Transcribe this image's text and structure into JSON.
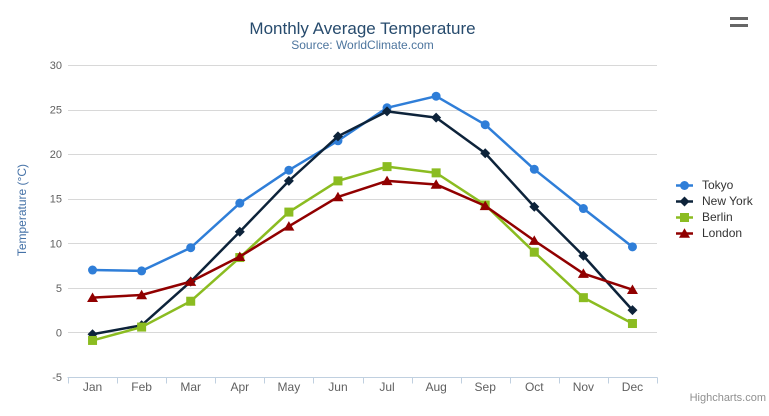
{
  "chart_data": {
    "type": "line",
    "title": "Monthly Average Temperature",
    "subtitle": "Source: WorldClimate.com",
    "xlabel": "",
    "ylabel": "Temperature (°C)",
    "ylim": [
      -5,
      30
    ],
    "y_ticks": [
      -5,
      0,
      5,
      10,
      15,
      20,
      25,
      30
    ],
    "grid": true,
    "legend_position": "right",
    "credits": "Highcharts.com",
    "categories": [
      "Jan",
      "Feb",
      "Mar",
      "Apr",
      "May",
      "Jun",
      "Jul",
      "Aug",
      "Sep",
      "Oct",
      "Nov",
      "Dec"
    ],
    "series": [
      {
        "name": "Tokyo",
        "color": "#2f7ed8",
        "marker": "circle",
        "values": [
          7.0,
          6.9,
          9.5,
          14.5,
          18.2,
          21.5,
          25.2,
          26.5,
          23.3,
          18.3,
          13.9,
          9.6
        ]
      },
      {
        "name": "New York",
        "color": "#0d233a",
        "marker": "diamond",
        "values": [
          -0.2,
          0.8,
          5.7,
          11.3,
          17.0,
          22.0,
          24.8,
          24.1,
          20.1,
          14.1,
          8.6,
          2.5
        ]
      },
      {
        "name": "Berlin",
        "color": "#8bbc21",
        "marker": "square",
        "values": [
          -0.9,
          0.6,
          3.5,
          8.4,
          13.5,
          17.0,
          18.6,
          17.9,
          14.3,
          9.0,
          3.9,
          1.0
        ]
      },
      {
        "name": "London",
        "color": "#910000",
        "marker": "triangle",
        "values": [
          3.9,
          4.2,
          5.7,
          8.5,
          11.9,
          15.2,
          17.0,
          16.6,
          14.2,
          10.3,
          6.6,
          4.8
        ]
      }
    ],
    "style": {
      "grid_color": "#d8d8d8",
      "axis_line_color": "#c0d0e0",
      "tick_label_color": "#606060"
    }
  }
}
